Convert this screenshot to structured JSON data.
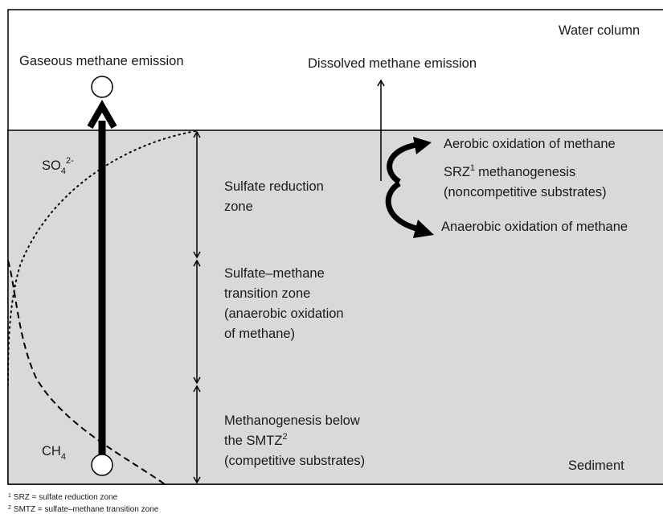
{
  "water_label": "Water column",
  "sediment_label": "Sediment",
  "gaseous_emission": "Gaseous methane emission",
  "dissolved_emission": "Dissolved methane emission",
  "so4": {
    "base": "SO",
    "sub": "4",
    "sup": "2-"
  },
  "ch4": {
    "base": "CH",
    "sub": "4"
  },
  "zones": [
    {
      "lines": [
        "Sulfate reduction",
        "zone"
      ]
    },
    {
      "lines": [
        "Sulfate–methane",
        "transition zone",
        "(anaerobic oxidation",
        "of methane)"
      ]
    },
    {
      "lines": [
        "Methanogenesis below",
        "the SMTZ",
        "(competitive substrates)"
      ],
      "sup": "2"
    }
  ],
  "processes": {
    "aerobic": "Aerobic oxidation of methane",
    "srz": {
      "base": "SRZ",
      "sup": "1",
      "rest": "methanogenesis",
      "line2": "(noncompetitive substrates)"
    },
    "anaerobic": "Anaerobic oxidation of methane"
  },
  "footnotes": [
    {
      "mark": "1",
      "text": "SRZ = sulfate reduction zone"
    },
    {
      "mark": "2",
      "text": "SMTZ = sulfate–methane transition zone"
    }
  ]
}
